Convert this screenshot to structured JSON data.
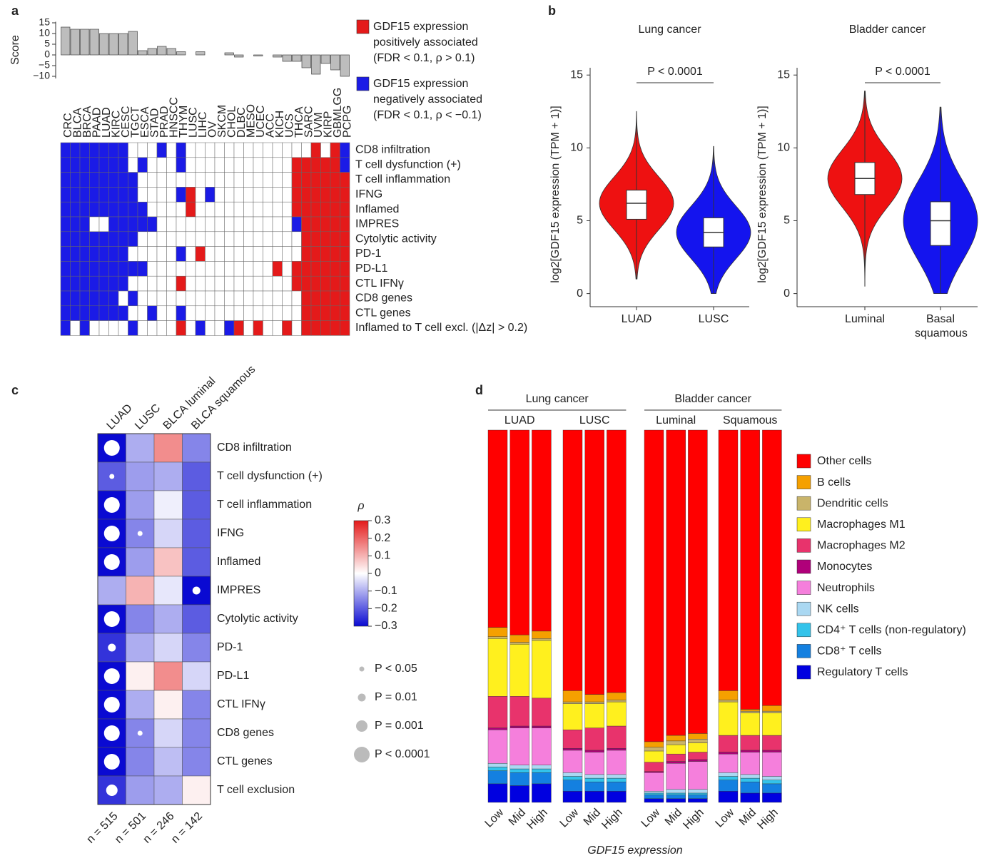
{
  "chart_data": [
    {
      "type": "bar",
      "panel": "a",
      "ylabel": "Score",
      "categories": [
        "CRC",
        "BLCA",
        "BRCA",
        "PAAD",
        "LUAD",
        "KIRC",
        "CESC",
        "TGCT",
        "ESCA",
        "STAD",
        "PRAD",
        "HNSCC",
        "THYM",
        "LUSC",
        "LIHC",
        "OV",
        "SKCM",
        "CHOL",
        "DLBC",
        "MESO",
        "UCEC",
        "ACC",
        "KICH",
        "UCS",
        "THCA",
        "SARC",
        "UVM",
        "KIRP",
        "GBMLGG",
        "PCPG"
      ],
      "values": [
        13,
        12,
        12,
        12,
        10,
        10,
        10,
        11,
        2,
        3,
        4,
        3,
        1.5,
        0,
        1.5,
        0,
        0,
        1,
        -1,
        0,
        -0.5,
        0,
        -1,
        -3,
        -3,
        -6,
        -9,
        -4,
        -7,
        -10
      ],
      "color": "#bdbdbd",
      "ylim": [
        -11,
        15.5
      ],
      "yticks": [
        15,
        10,
        5,
        0,
        {
          "value": -5,
          "label": "−5"
        },
        {
          "value": -10,
          "label": "−10"
        }
      ],
      "heatmap": {
        "rows": [
          "CD8 infiltration",
          "T cell dysfunction (+)",
          "T cell inflammation",
          "IFNG",
          "Inflamed",
          "IMPRES",
          "Cytolytic activity",
          "PD-1",
          "PD-L1",
          "CTL IFNγ",
          "CD8 genes",
          "CTL genes",
          "Inflamed to T cell excl. (|Δz| > 0.2)"
        ],
        "level_colors": [
          "#1b1be6",
          "#ffffff",
          "#e41a1a"
        ],
        "values": [
          [
            -1,
            -1,
            -1,
            -1,
            -1,
            -1,
            -1,
            0,
            0,
            0,
            -1,
            0,
            -1,
            0,
            0,
            0,
            0,
            0,
            0,
            0,
            0,
            0,
            0,
            0,
            0,
            0,
            1,
            0,
            1,
            -1
          ],
          [
            -1,
            -1,
            -1,
            -1,
            -1,
            -1,
            -1,
            0,
            -1,
            0,
            0,
            0,
            -1,
            0,
            0,
            0,
            0,
            0,
            0,
            0,
            0,
            0,
            0,
            0,
            1,
            1,
            1,
            1,
            1,
            -1
          ],
          [
            -1,
            -1,
            -1,
            -1,
            -1,
            -1,
            -1,
            -1,
            0,
            0,
            0,
            0,
            0,
            0,
            0,
            0,
            0,
            0,
            0,
            0,
            0,
            0,
            0,
            0,
            1,
            1,
            1,
            1,
            1,
            1
          ],
          [
            -1,
            -1,
            -1,
            -1,
            -1,
            -1,
            -1,
            -1,
            0,
            0,
            0,
            0,
            -1,
            1,
            0,
            -1,
            0,
            0,
            0,
            0,
            0,
            0,
            0,
            0,
            1,
            1,
            1,
            1,
            1,
            1
          ],
          [
            -1,
            -1,
            -1,
            -1,
            -1,
            -1,
            -1,
            -1,
            -1,
            0,
            0,
            0,
            0,
            1,
            0,
            0,
            0,
            0,
            0,
            0,
            0,
            0,
            0,
            0,
            1,
            1,
            1,
            1,
            1,
            1
          ],
          [
            -1,
            -1,
            -1,
            0,
            0,
            -1,
            -1,
            -1,
            -1,
            -1,
            0,
            0,
            0,
            0,
            0,
            0,
            0,
            0,
            0,
            0,
            0,
            0,
            0,
            0,
            -1,
            1,
            1,
            1,
            1,
            1
          ],
          [
            -1,
            -1,
            -1,
            -1,
            -1,
            -1,
            -1,
            -1,
            0,
            0,
            0,
            0,
            0,
            0,
            0,
            0,
            0,
            0,
            0,
            0,
            0,
            0,
            0,
            0,
            0,
            1,
            1,
            1,
            1,
            1
          ],
          [
            -1,
            -1,
            -1,
            -1,
            -1,
            -1,
            -1,
            0,
            0,
            0,
            0,
            0,
            -1,
            0,
            1,
            0,
            0,
            0,
            0,
            0,
            0,
            0,
            0,
            0,
            0,
            1,
            1,
            1,
            1,
            1
          ],
          [
            -1,
            -1,
            -1,
            -1,
            -1,
            -1,
            -1,
            -1,
            -1,
            0,
            0,
            0,
            0,
            0,
            0,
            0,
            0,
            0,
            0,
            0,
            0,
            0,
            1,
            0,
            1,
            1,
            1,
            1,
            1,
            1
          ],
          [
            -1,
            -1,
            -1,
            -1,
            -1,
            -1,
            -1,
            0,
            0,
            0,
            0,
            0,
            1,
            0,
            0,
            0,
            0,
            0,
            0,
            0,
            0,
            0,
            0,
            0,
            1,
            1,
            1,
            1,
            1,
            1
          ],
          [
            -1,
            -1,
            -1,
            -1,
            -1,
            -1,
            0,
            -1,
            0,
            0,
            0,
            0,
            0,
            0,
            0,
            0,
            0,
            0,
            0,
            0,
            0,
            0,
            0,
            0,
            0,
            1,
            1,
            1,
            1,
            1
          ],
          [
            -1,
            -1,
            -1,
            -1,
            -1,
            -1,
            -1,
            0,
            0,
            -1,
            0,
            0,
            -1,
            0,
            0,
            0,
            0,
            0,
            0,
            0,
            0,
            0,
            0,
            0,
            0,
            1,
            1,
            1,
            1,
            1
          ],
          [
            -1,
            0,
            -1,
            0,
            0,
            0,
            0,
            -1,
            0,
            0,
            0,
            0,
            1,
            0,
            -1,
            0,
            0,
            -1,
            1,
            0,
            1,
            0,
            0,
            1,
            0,
            1,
            1,
            1,
            1,
            1
          ]
        ]
      },
      "legend": [
        {
          "color": "#e41a1a",
          "lines": [
            "GDF15 expression",
            "positively associated",
            "(FDR < 0.1, ρ > 0.1)"
          ]
        },
        {
          "color": "#1b1be6",
          "lines": [
            "GDF15 expression",
            "negatively associated",
            "(FDR < 0.1, ρ < −0.1)"
          ]
        }
      ]
    },
    {
      "type": "violin",
      "panel": "b",
      "title": "Lung cancer",
      "ylabel": "log2[GDF15 expression (TPM + 1)]",
      "categories": [
        "LUAD",
        "LUSC"
      ],
      "colors": [
        "#ee1111",
        "#1414ee"
      ],
      "values": [
        {
          "min": 1,
          "q1": 5.1,
          "median": 6.2,
          "q3": 7.1,
          "max": 12.5
        },
        {
          "min": 0,
          "q1": 3.2,
          "median": 4.2,
          "q3": 5.2,
          "max": 10.1
        }
      ],
      "annotation": "P < 0.0001",
      "ylim": [
        -0.9,
        15.5
      ],
      "yticks": [
        0,
        5,
        10,
        15
      ]
    },
    {
      "type": "violin",
      "title": "Bladder cancer",
      "ylabel": "log2[GDF15 expression (TPM + 1)]",
      "categories": [
        "Luminal",
        "Basal squamous"
      ],
      "colors": [
        "#ee1111",
        "#1414ee"
      ],
      "values": [
        {
          "min": 0.5,
          "q1": 6.8,
          "median": 7.9,
          "q3": 9.0,
          "max": 13.9
        },
        {
          "min": 0,
          "q1": 3.3,
          "median": 5,
          "q3": 6.3,
          "max": 12.8
        }
      ],
      "annotation": "P < 0.0001",
      "ylim": [
        -0.9,
        15.5
      ],
      "yticks": [
        0,
        5,
        10,
        15
      ]
    },
    {
      "type": "bubble_heatmap",
      "panel": "c",
      "columns": [
        "LUAD",
        "LUSC",
        "BLCA luminal",
        "BLCA squamous"
      ],
      "n_labels": [
        "n = 515",
        "n = 501",
        "n = 246",
        "n = 142"
      ],
      "rows": [
        "CD8 infiltration",
        "T cell dysfunction (+)",
        "T cell inflammation",
        "IFNG",
        "Inflamed",
        "IMPRES",
        "Cytolytic activity",
        "PD-1",
        "PD-L1",
        "CTL IFNγ",
        "CD8 genes",
        "CTL genes",
        "T cell exclusion"
      ],
      "rho": [
        [
          -0.3,
          -0.1,
          0.15,
          -0.15
        ],
        [
          -0.2,
          -0.12,
          -0.1,
          -0.2
        ],
        [
          -0.3,
          -0.12,
          -0.02,
          -0.2
        ],
        [
          -0.3,
          -0.15,
          -0.05,
          -0.2
        ],
        [
          -0.3,
          -0.12,
          0.08,
          -0.2
        ],
        [
          -0.1,
          0.1,
          -0.03,
          -0.3
        ],
        [
          -0.3,
          -0.15,
          -0.1,
          -0.2
        ],
        [
          -0.25,
          -0.1,
          -0.05,
          -0.15
        ],
        [
          -0.3,
          0.02,
          0.15,
          -0.05
        ],
        [
          -0.3,
          -0.1,
          0.02,
          -0.15
        ],
        [
          -0.3,
          -0.15,
          -0.05,
          -0.15
        ],
        [
          -0.3,
          -0.15,
          -0.08,
          -0.15
        ],
        [
          -0.25,
          -0.12,
          -0.1,
          0.02
        ]
      ],
      "p_level": [
        [
          3,
          null,
          null,
          null
        ],
        [
          0,
          null,
          null,
          null
        ],
        [
          3,
          null,
          null,
          null
        ],
        [
          3,
          0,
          null,
          null
        ],
        [
          3,
          null,
          null,
          null
        ],
        [
          null,
          null,
          null,
          1
        ],
        [
          3,
          null,
          null,
          null
        ],
        [
          1,
          null,
          null,
          null
        ],
        [
          3,
          null,
          null,
          null
        ],
        [
          3,
          null,
          null,
          null
        ],
        [
          3,
          0,
          null,
          null
        ],
        [
          3,
          null,
          null,
          null
        ],
        [
          2,
          null,
          null,
          null
        ]
      ],
      "colorbar_label": "ρ",
      "colorscale": [
        "#0a0ad2",
        "#ffffff",
        "#e41a1a"
      ],
      "clim": [
        -0.3,
        0.3
      ],
      "cticks": [
        0.3,
        0.2,
        0.1,
        0,
        {
          "value": -0.1,
          "label": "−0.1"
        },
        {
          "value": -0.2,
          "label": "−0.2"
        },
        {
          "value": -0.3,
          "label": "−0.3"
        }
      ],
      "p_legend": [
        "P < 0.05",
        "P = 0.01",
        "P = 0.001",
        "P < 0.0001"
      ]
    },
    {
      "type": "stacked_bar",
      "panel": "d",
      "xlabel": "GDF15 expression",
      "groups": [
        {
          "name": "Lung cancer",
          "subgroups": [
            "LUAD",
            "LUSC"
          ]
        },
        {
          "name": "Bladder cancer",
          "subgroups": [
            "Luminal",
            "Squamous"
          ]
        }
      ],
      "categories": [
        "Low",
        "Mid",
        "High",
        "Low",
        "Mid",
        "High",
        "Low",
        "Mid",
        "High",
        "Low",
        "Mid",
        "High"
      ],
      "ylim": [
        0,
        1
      ],
      "series": [
        {
          "name": "Other cells",
          "color": "#ff0000",
          "values": [
            0.53,
            0.55,
            0.54,
            0.7,
            0.71,
            0.705,
            0.837,
            0.82,
            0.815,
            0.7,
            0.75,
            0.74
          ]
        },
        {
          "name": "B cells",
          "color": "#f5a000",
          "values": [
            0.025,
            0.02,
            0.02,
            0.03,
            0.02,
            0.02,
            0.015,
            0.015,
            0.015,
            0.025,
            0.005,
            0.015
          ]
        },
        {
          "name": "Dendritic cells",
          "color": "#c9b46a",
          "values": [
            0.005,
            0.005,
            0.005,
            0.005,
            0.005,
            0.005,
            0.01,
            0.01,
            0.01,
            0.005,
            0.005,
            0.005
          ]
        },
        {
          "name": "Macrophages M1",
          "color": "#fff01e",
          "values": [
            0.155,
            0.14,
            0.155,
            0.07,
            0.065,
            0.065,
            0.03,
            0.025,
            0.025,
            0.09,
            0.06,
            0.06
          ]
        },
        {
          "name": "Macrophages M2",
          "color": "#e8336c",
          "values": [
            0.085,
            0.08,
            0.075,
            0.05,
            0.06,
            0.06,
            0.025,
            0.02,
            0.02,
            0.045,
            0.04,
            0.04
          ]
        },
        {
          "name": "Monocytes",
          "color": "#b0007a",
          "values": [
            0.005,
            0.005,
            0.005,
            0.005,
            0.005,
            0.005,
            0.003,
            0.005,
            0.005,
            0.005,
            0.005,
            0.005
          ]
        },
        {
          "name": "Neutrophils",
          "color": "#f57fdc",
          "values": [
            0.09,
            0.1,
            0.1,
            0.06,
            0.06,
            0.065,
            0.05,
            0.07,
            0.075,
            0.05,
            0.06,
            0.065
          ]
        },
        {
          "name": "NK cells",
          "color": "#aad8f2",
          "values": [
            0.01,
            0.01,
            0.01,
            0.01,
            0.01,
            0.01,
            0.005,
            0.01,
            0.01,
            0.01,
            0.01,
            0.01
          ]
        },
        {
          "name": "CD4⁺ T cells (non-regulatory)",
          "color": "#33c3ea",
          "values": [
            0.01,
            0.01,
            0.01,
            0.01,
            0.01,
            0.01,
            0.005,
            0.005,
            0.005,
            0.01,
            0.01,
            0.01
          ]
        },
        {
          "name": "CD8⁺ T cells",
          "color": "#1480e0",
          "values": [
            0.035,
            0.035,
            0.03,
            0.03,
            0.025,
            0.025,
            0.01,
            0.01,
            0.01,
            0.03,
            0.03,
            0.025
          ]
        },
        {
          "name": "Regulatory T cells",
          "color": "#0000e0",
          "values": [
            0.05,
            0.045,
            0.05,
            0.03,
            0.03,
            0.03,
            0.01,
            0.01,
            0.01,
            0.03,
            0.025,
            0.025
          ]
        }
      ]
    }
  ]
}
